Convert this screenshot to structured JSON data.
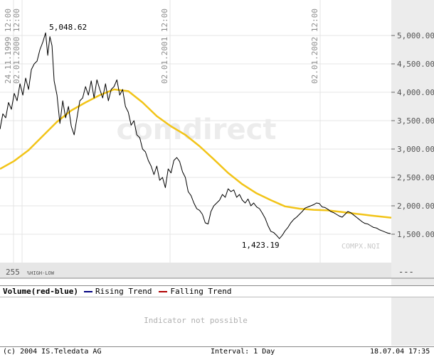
{
  "watermark": "comdirect",
  "symbol": "COMPX.NQI",
  "chart_data": {
    "type": "line",
    "x_tick_labels": [
      "24.11.1999 12:00",
      "02.01.2000 12:00",
      "02.01.2001 12:00",
      "02.01.2002 12:00"
    ],
    "y_tick_labels": [
      "1,500.00",
      "2,000.00",
      "2,500.00",
      "3,000.00",
      "3,500.00",
      "4,000.00",
      "4,500.00",
      "5,000.00"
    ],
    "y_ticks": [
      1500,
      2000,
      2500,
      3000,
      3500,
      4000,
      4500,
      5000
    ],
    "ylim": [
      1000,
      5500
    ],
    "xlim": [
      0,
      549
    ],
    "annotations": {
      "high": {
        "label": "5,048.62",
        "value": 5048.62,
        "x": 64
      },
      "low": {
        "label": "1,423.19",
        "value": 1423.19,
        "x": 392
      }
    },
    "series": [
      {
        "name": "",
        "color": "#000000",
        "x": [
          0,
          4,
          8,
          12,
          16,
          20,
          24,
          28,
          32,
          36,
          40,
          44,
          48,
          52,
          56,
          60,
          64,
          67,
          70,
          73,
          76,
          80,
          84,
          88,
          92,
          96,
          100,
          104,
          108,
          112,
          116,
          120,
          124,
          128,
          132,
          136,
          140,
          144,
          148,
          152,
          156,
          160,
          164,
          168,
          172,
          176,
          180,
          184,
          188,
          192,
          196,
          200,
          204,
          208,
          212,
          216,
          220,
          224,
          228,
          232,
          236,
          240,
          244,
          248,
          252,
          256,
          260,
          264,
          268,
          272,
          276,
          280,
          284,
          288,
          292,
          296,
          300,
          304,
          308,
          312,
          316,
          320,
          324,
          328,
          332,
          336,
          340,
          344,
          348,
          352,
          356,
          360,
          364,
          368,
          372,
          376,
          380,
          384,
          388,
          392,
          396,
          400,
          404,
          408,
          412,
          416,
          420,
          424,
          428,
          432,
          436,
          440,
          444,
          448,
          452,
          456,
          460,
          464,
          468,
          472,
          476,
          480,
          484,
          488,
          492,
          496,
          500,
          504,
          508,
          512,
          516,
          520,
          524,
          528,
          532,
          536,
          540,
          544,
          548
        ],
        "values": [
          3350,
          3620,
          3550,
          3820,
          3700,
          3980,
          3850,
          4150,
          3950,
          4250,
          4050,
          4400,
          4500,
          4550,
          4750,
          4880,
          5048,
          4650,
          4980,
          4820,
          4200,
          3950,
          3450,
          3850,
          3550,
          3750,
          3400,
          3250,
          3550,
          3850,
          3900,
          4100,
          3950,
          4200,
          3900,
          4220,
          4050,
          3900,
          4150,
          3850,
          4050,
          4100,
          4220,
          3950,
          4050,
          3750,
          3650,
          3420,
          3500,
          3250,
          3200,
          3000,
          2950,
          2800,
          2700,
          2550,
          2700,
          2450,
          2500,
          2320,
          2650,
          2580,
          2800,
          2850,
          2780,
          2600,
          2500,
          2250,
          2180,
          2050,
          1950,
          1920,
          1850,
          1700,
          1680,
          1900,
          2000,
          2050,
          2100,
          2200,
          2150,
          2300,
          2250,
          2280,
          2150,
          2200,
          2100,
          2050,
          2120,
          2000,
          2050,
          1980,
          1950,
          1870,
          1780,
          1650,
          1550,
          1530,
          1480,
          1423,
          1480,
          1560,
          1620,
          1700,
          1760,
          1800,
          1850,
          1900,
          1960,
          1980,
          2000,
          2020,
          2050,
          2040,
          1980,
          1970,
          1940,
          1900,
          1880,
          1850,
          1820,
          1800,
          1850,
          1900,
          1880,
          1840,
          1800,
          1760,
          1720,
          1690,
          1680,
          1650,
          1620,
          1610,
          1580,
          1560,
          1540,
          1520,
          1510
        ]
      },
      {
        "name": "",
        "color": "#f2c418",
        "x": [
          0,
          20,
          40,
          60,
          80,
          100,
          120,
          140,
          160,
          180,
          200,
          220,
          240,
          260,
          280,
          300,
          320,
          340,
          360,
          380,
          400,
          420,
          440,
          460,
          480,
          500,
          520,
          549
        ],
        "values": [
          2650,
          2790,
          2980,
          3230,
          3480,
          3680,
          3820,
          3950,
          4050,
          4020,
          3820,
          3580,
          3400,
          3250,
          3050,
          2820,
          2580,
          2380,
          2220,
          2100,
          1990,
          1950,
          1930,
          1920,
          1890,
          1860,
          1830,
          1790
        ]
      }
    ]
  },
  "bottom_left_label": "255",
  "bottom_left_sublabel": "%HIGH-LOW",
  "axis_dash": "---",
  "legend": {
    "title": "Volume(red-blue)",
    "items": [
      {
        "label": "Rising Trend",
        "color": "#000080"
      },
      {
        "label": "Falling Trend",
        "color": "#b00000"
      }
    ]
  },
  "indicator_message": "Indicator not possible",
  "footer": {
    "copyright": "(c) 2004  IS.Teledata AG",
    "interval": "Interval: 1 Day",
    "date": "18.07.04 17:35"
  }
}
